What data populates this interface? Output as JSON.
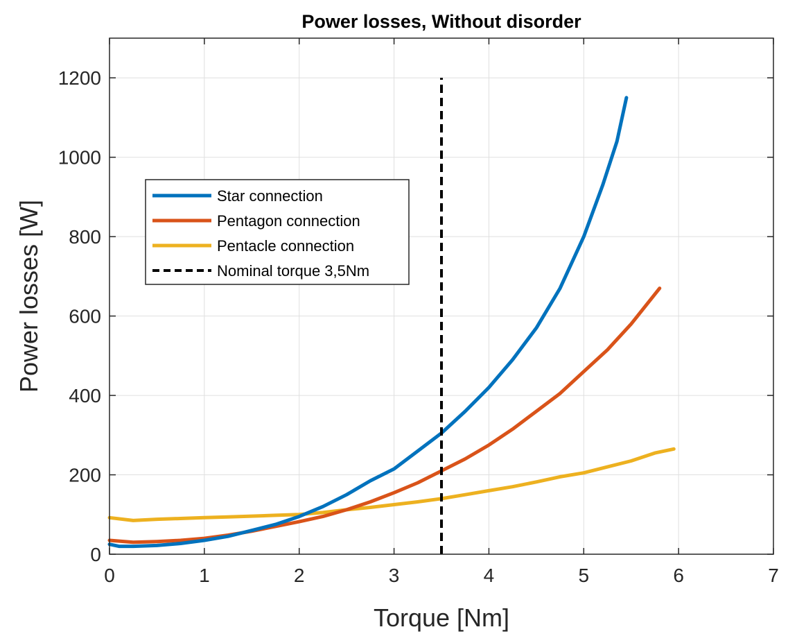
{
  "chart_data": {
    "type": "line",
    "title": "Power losses, Without disorder",
    "xlabel": "Torque [Nm]",
    "ylabel": "Power losses [W]",
    "xlim": [
      0,
      7
    ],
    "ylim": [
      0,
      1300
    ],
    "xticks": [
      "0",
      "1",
      "2",
      "3",
      "4",
      "5",
      "6",
      "7"
    ],
    "yticks": [
      "0",
      "200",
      "400",
      "600",
      "800",
      "1000",
      "1200"
    ],
    "xtick_values": [
      0,
      1,
      2,
      3,
      4,
      5,
      6,
      7
    ],
    "ytick_values": [
      0,
      200,
      400,
      600,
      800,
      1000,
      1200
    ],
    "grid": true,
    "legend_position": "upper-left",
    "series": [
      {
        "name": "Star connection",
        "color": "#0072BD",
        "style": "solid",
        "x": [
          0,
          0.1,
          0.25,
          0.5,
          0.75,
          1,
          1.25,
          1.5,
          1.75,
          2,
          2.25,
          2.5,
          2.75,
          3,
          3.25,
          3.5,
          3.75,
          4,
          4.25,
          4.5,
          4.75,
          5,
          5.2,
          5.35,
          5.45
        ],
        "y": [
          25,
          20,
          20,
          22,
          27,
          35,
          45,
          60,
          75,
          95,
          120,
          150,
          185,
          215,
          260,
          305,
          360,
          420,
          490,
          570,
          670,
          800,
          930,
          1040,
          1150
        ]
      },
      {
        "name": "Pentagon connection",
        "color": "#D95319",
        "style": "solid",
        "x": [
          0,
          0.25,
          0.5,
          0.75,
          1,
          1.25,
          1.5,
          1.75,
          2,
          2.25,
          2.5,
          2.75,
          3,
          3.25,
          3.5,
          3.75,
          4,
          4.25,
          4.5,
          4.75,
          5,
          5.25,
          5.5,
          5.8
        ],
        "y": [
          35,
          30,
          32,
          35,
          40,
          48,
          58,
          70,
          82,
          95,
          112,
          132,
          155,
          180,
          210,
          240,
          275,
          315,
          360,
          405,
          460,
          515,
          580,
          670
        ]
      },
      {
        "name": "Pentacle connection",
        "color": "#EDB120",
        "style": "solid",
        "x": [
          0,
          0.25,
          0.5,
          0.75,
          1,
          1.25,
          1.5,
          1.75,
          2,
          2.25,
          2.5,
          2.75,
          3,
          3.25,
          3.5,
          3.75,
          4,
          4.25,
          4.5,
          4.75,
          5,
          5.25,
          5.5,
          5.75,
          5.95
        ],
        "y": [
          92,
          85,
          88,
          90,
          92,
          94,
          96,
          98,
          100,
          105,
          112,
          118,
          125,
          132,
          140,
          150,
          160,
          170,
          182,
          195,
          205,
          220,
          235,
          255,
          265
        ]
      },
      {
        "name": "Nominal torque 3,5Nm",
        "color": "#000000",
        "style": "dashed",
        "x": [
          3.5,
          3.5
        ],
        "y": [
          0,
          1200
        ]
      }
    ]
  }
}
